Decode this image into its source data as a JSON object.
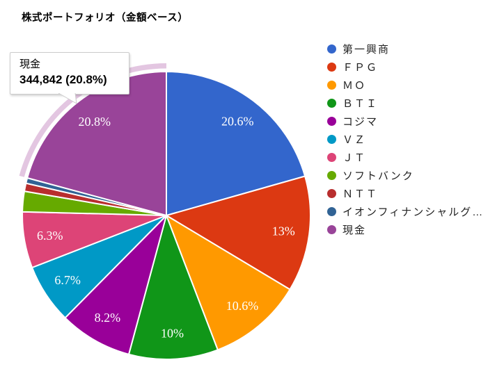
{
  "title": "株式ポートフォリオ（金額ベース）",
  "chart_data": {
    "type": "pie",
    "title": "株式ポートフォリオ（金額ベース）",
    "legend_position": "right",
    "slices": [
      {
        "label": "第一興商",
        "color": "#3366CC",
        "pct": 20.6,
        "pct_label": "20.6%",
        "show_label": true
      },
      {
        "label": "ＦＰＧ",
        "color": "#DC3912",
        "pct": 13.0,
        "pct_label": "13%",
        "show_label": true
      },
      {
        "label": "ＭＯ",
        "color": "#FF9900",
        "pct": 10.6,
        "pct_label": "10.6%",
        "show_label": true
      },
      {
        "label": "ＢＴＩ",
        "color": "#109618",
        "pct": 10.0,
        "pct_label": "10%",
        "show_label": true
      },
      {
        "label": "コジマ",
        "color": "#990099",
        "pct": 8.2,
        "pct_label": "8.2%",
        "show_label": true
      },
      {
        "label": "ＶＺ",
        "color": "#0099C6",
        "pct": 6.7,
        "pct_label": "6.7%",
        "show_label": true
      },
      {
        "label": "ＪＴ",
        "color": "#DD4477",
        "pct": 6.3,
        "pct_label": "6.3%",
        "show_label": true
      },
      {
        "label": "ソフトバンク",
        "color": "#66AA00",
        "pct": 2.3,
        "pct_label": "",
        "show_label": false
      },
      {
        "label": "ＮＴＴ",
        "color": "#B82E2E",
        "pct": 0.9,
        "pct_label": "",
        "show_label": false
      },
      {
        "label": "イオンフィナンシャルグ…",
        "color": "#316395",
        "pct": 0.6,
        "pct_label": "",
        "show_label": false
      },
      {
        "label": "現金",
        "color": "#994499",
        "pct": 20.8,
        "pct_label": "20.8%",
        "show_label": true,
        "value_label": "344,842",
        "highlighted": true
      }
    ],
    "highlight_ring_color": "#E3C6E1"
  },
  "tooltip": {
    "name": "現金",
    "value_text": "344,842 (20.8%)"
  }
}
